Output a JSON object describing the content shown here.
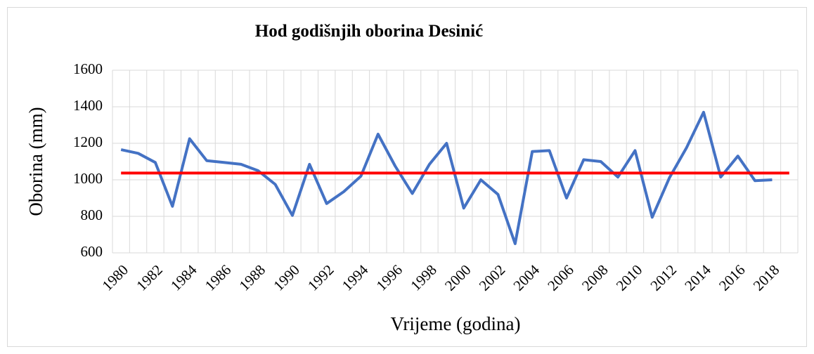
{
  "chart_data": {
    "type": "line",
    "title": "Hod godišnjih oborina Desinić",
    "x_label": "Vrijeme (godina)",
    "y_label": "Oborina (mm)",
    "categories": [
      "1980",
      null,
      "1982",
      null,
      "1984",
      null,
      "1986",
      null,
      "1988",
      null,
      "1990",
      null,
      "1992",
      null,
      "1994",
      null,
      "1996",
      null,
      "1998",
      null,
      "2000",
      null,
      "2002",
      null,
      "2004",
      null,
      "2006",
      null,
      "2008",
      null,
      "2010",
      null,
      "2012",
      null,
      "2014",
      null,
      "2016",
      null,
      "2018",
      null
    ],
    "series": [
      {
        "color": "#4472c4",
        "values": [
          1165,
          1145,
          1095,
          855,
          1225,
          1105,
          1095,
          1085,
          1050,
          975,
          805,
          1085,
          870,
          935,
          1020,
          1250,
          1075,
          925,
          1085,
          1200,
          845,
          1000,
          920,
          650,
          1155,
          1160,
          900,
          1110,
          1100,
          1015,
          1160,
          795,
          1010,
          1175,
          1370,
          1015,
          1130,
          995,
          1000,
          null
        ]
      },
      {
        "color": "#ff0000",
        "values": [
          1037,
          1037,
          1037,
          1037,
          1037,
          1037,
          1037,
          1037,
          1037,
          1037,
          1037,
          1037,
          1037,
          1037,
          1037,
          1037,
          1037,
          1037,
          1037,
          1037,
          1037,
          1037,
          1037,
          1037,
          1037,
          1037,
          1037,
          1037,
          1037,
          1037,
          1037,
          1037,
          1037,
          1037,
          1037,
          1037,
          1037,
          1037,
          1037,
          1037
        ]
      }
    ],
    "ylim": [
      600,
      1600
    ],
    "yticks": [
      600,
      800,
      1000,
      1200,
      1400,
      1600
    ],
    "grid": true
  }
}
